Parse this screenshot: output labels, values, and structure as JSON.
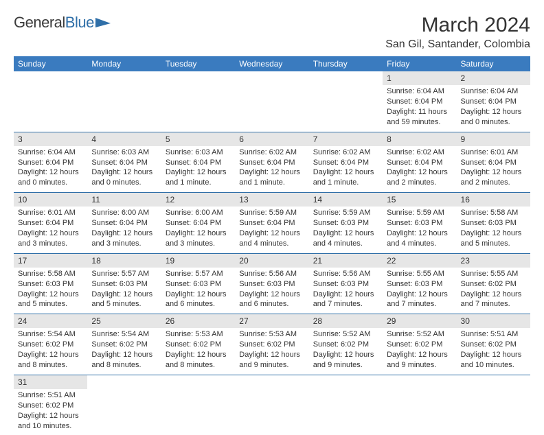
{
  "logo": {
    "text1": "General",
    "text2": "Blue"
  },
  "title": "March 2024",
  "subtitle": "San Gil, Santander, Colombia",
  "colors": {
    "header_bg": "#3a7bbf",
    "header_text": "#ffffff",
    "daynum_bg": "#e6e6e6",
    "row_border": "#2f6fa8",
    "text": "#333333",
    "logo_blue": "#2f6fa8",
    "background": "#ffffff"
  },
  "fonts": {
    "body_size": 11,
    "header_size": 12,
    "title_size": 30,
    "subtitle_size": 16
  },
  "weekdays": [
    "Sunday",
    "Monday",
    "Tuesday",
    "Wednesday",
    "Thursday",
    "Friday",
    "Saturday"
  ],
  "weeks": [
    [
      {
        "empty": true
      },
      {
        "empty": true
      },
      {
        "empty": true
      },
      {
        "empty": true
      },
      {
        "empty": true
      },
      {
        "num": "1",
        "sunrise": "Sunrise: 6:04 AM",
        "sunset": "Sunset: 6:04 PM",
        "daylight": "Daylight: 11 hours and 59 minutes."
      },
      {
        "num": "2",
        "sunrise": "Sunrise: 6:04 AM",
        "sunset": "Sunset: 6:04 PM",
        "daylight": "Daylight: 12 hours and 0 minutes."
      }
    ],
    [
      {
        "num": "3",
        "sunrise": "Sunrise: 6:04 AM",
        "sunset": "Sunset: 6:04 PM",
        "daylight": "Daylight: 12 hours and 0 minutes."
      },
      {
        "num": "4",
        "sunrise": "Sunrise: 6:03 AM",
        "sunset": "Sunset: 6:04 PM",
        "daylight": "Daylight: 12 hours and 0 minutes."
      },
      {
        "num": "5",
        "sunrise": "Sunrise: 6:03 AM",
        "sunset": "Sunset: 6:04 PM",
        "daylight": "Daylight: 12 hours and 1 minute."
      },
      {
        "num": "6",
        "sunrise": "Sunrise: 6:02 AM",
        "sunset": "Sunset: 6:04 PM",
        "daylight": "Daylight: 12 hours and 1 minute."
      },
      {
        "num": "7",
        "sunrise": "Sunrise: 6:02 AM",
        "sunset": "Sunset: 6:04 PM",
        "daylight": "Daylight: 12 hours and 1 minute."
      },
      {
        "num": "8",
        "sunrise": "Sunrise: 6:02 AM",
        "sunset": "Sunset: 6:04 PM",
        "daylight": "Daylight: 12 hours and 2 minutes."
      },
      {
        "num": "9",
        "sunrise": "Sunrise: 6:01 AM",
        "sunset": "Sunset: 6:04 PM",
        "daylight": "Daylight: 12 hours and 2 minutes."
      }
    ],
    [
      {
        "num": "10",
        "sunrise": "Sunrise: 6:01 AM",
        "sunset": "Sunset: 6:04 PM",
        "daylight": "Daylight: 12 hours and 3 minutes."
      },
      {
        "num": "11",
        "sunrise": "Sunrise: 6:00 AM",
        "sunset": "Sunset: 6:04 PM",
        "daylight": "Daylight: 12 hours and 3 minutes."
      },
      {
        "num": "12",
        "sunrise": "Sunrise: 6:00 AM",
        "sunset": "Sunset: 6:04 PM",
        "daylight": "Daylight: 12 hours and 3 minutes."
      },
      {
        "num": "13",
        "sunrise": "Sunrise: 5:59 AM",
        "sunset": "Sunset: 6:04 PM",
        "daylight": "Daylight: 12 hours and 4 minutes."
      },
      {
        "num": "14",
        "sunrise": "Sunrise: 5:59 AM",
        "sunset": "Sunset: 6:03 PM",
        "daylight": "Daylight: 12 hours and 4 minutes."
      },
      {
        "num": "15",
        "sunrise": "Sunrise: 5:59 AM",
        "sunset": "Sunset: 6:03 PM",
        "daylight": "Daylight: 12 hours and 4 minutes."
      },
      {
        "num": "16",
        "sunrise": "Sunrise: 5:58 AM",
        "sunset": "Sunset: 6:03 PM",
        "daylight": "Daylight: 12 hours and 5 minutes."
      }
    ],
    [
      {
        "num": "17",
        "sunrise": "Sunrise: 5:58 AM",
        "sunset": "Sunset: 6:03 PM",
        "daylight": "Daylight: 12 hours and 5 minutes."
      },
      {
        "num": "18",
        "sunrise": "Sunrise: 5:57 AM",
        "sunset": "Sunset: 6:03 PM",
        "daylight": "Daylight: 12 hours and 5 minutes."
      },
      {
        "num": "19",
        "sunrise": "Sunrise: 5:57 AM",
        "sunset": "Sunset: 6:03 PM",
        "daylight": "Daylight: 12 hours and 6 minutes."
      },
      {
        "num": "20",
        "sunrise": "Sunrise: 5:56 AM",
        "sunset": "Sunset: 6:03 PM",
        "daylight": "Daylight: 12 hours and 6 minutes."
      },
      {
        "num": "21",
        "sunrise": "Sunrise: 5:56 AM",
        "sunset": "Sunset: 6:03 PM",
        "daylight": "Daylight: 12 hours and 7 minutes."
      },
      {
        "num": "22",
        "sunrise": "Sunrise: 5:55 AM",
        "sunset": "Sunset: 6:03 PM",
        "daylight": "Daylight: 12 hours and 7 minutes."
      },
      {
        "num": "23",
        "sunrise": "Sunrise: 5:55 AM",
        "sunset": "Sunset: 6:02 PM",
        "daylight": "Daylight: 12 hours and 7 minutes."
      }
    ],
    [
      {
        "num": "24",
        "sunrise": "Sunrise: 5:54 AM",
        "sunset": "Sunset: 6:02 PM",
        "daylight": "Daylight: 12 hours and 8 minutes."
      },
      {
        "num": "25",
        "sunrise": "Sunrise: 5:54 AM",
        "sunset": "Sunset: 6:02 PM",
        "daylight": "Daylight: 12 hours and 8 minutes."
      },
      {
        "num": "26",
        "sunrise": "Sunrise: 5:53 AM",
        "sunset": "Sunset: 6:02 PM",
        "daylight": "Daylight: 12 hours and 8 minutes."
      },
      {
        "num": "27",
        "sunrise": "Sunrise: 5:53 AM",
        "sunset": "Sunset: 6:02 PM",
        "daylight": "Daylight: 12 hours and 9 minutes."
      },
      {
        "num": "28",
        "sunrise": "Sunrise: 5:52 AM",
        "sunset": "Sunset: 6:02 PM",
        "daylight": "Daylight: 12 hours and 9 minutes."
      },
      {
        "num": "29",
        "sunrise": "Sunrise: 5:52 AM",
        "sunset": "Sunset: 6:02 PM",
        "daylight": "Daylight: 12 hours and 9 minutes."
      },
      {
        "num": "30",
        "sunrise": "Sunrise: 5:51 AM",
        "sunset": "Sunset: 6:02 PM",
        "daylight": "Daylight: 12 hours and 10 minutes."
      }
    ],
    [
      {
        "num": "31",
        "sunrise": "Sunrise: 5:51 AM",
        "sunset": "Sunset: 6:02 PM",
        "daylight": "Daylight: 12 hours and 10 minutes."
      },
      {
        "empty": true
      },
      {
        "empty": true
      },
      {
        "empty": true
      },
      {
        "empty": true
      },
      {
        "empty": true
      },
      {
        "empty": true
      }
    ]
  ]
}
